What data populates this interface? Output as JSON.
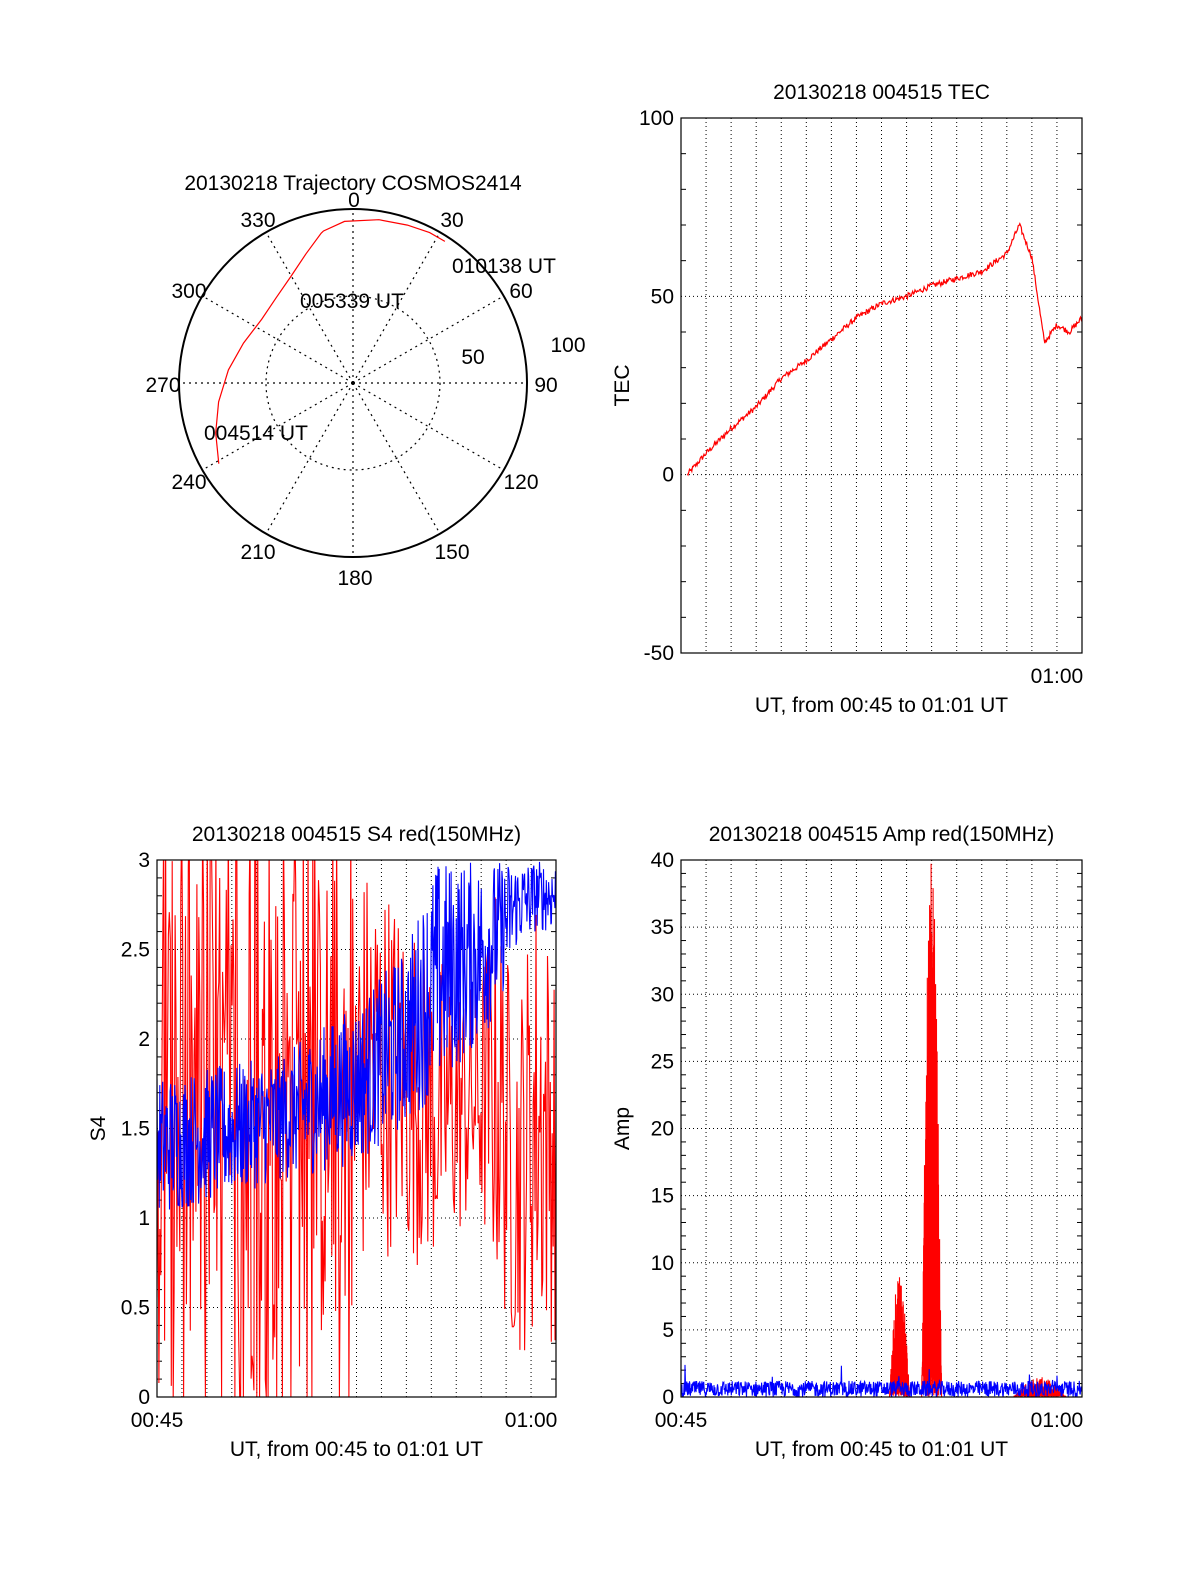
{
  "chart_data": [
    {
      "id": "trajectory",
      "type": "polar",
      "title": "20130218 Trajectory COSMOS2414",
      "azimuth_labels": [
        "0",
        "30",
        "60",
        "90",
        "120",
        "150",
        "180",
        "210",
        "240",
        "270",
        "300",
        "330"
      ],
      "radial_labels": [
        "50",
        "100"
      ],
      "rlim": [
        0,
        100
      ],
      "color": "#ff0000",
      "track": [
        {
          "az": 239,
          "r": 90
        },
        {
          "az": 250,
          "r": 84
        },
        {
          "az": 262,
          "r": 78
        },
        {
          "az": 276,
          "r": 72
        },
        {
          "az": 290,
          "r": 67
        },
        {
          "az": 305,
          "r": 64
        },
        {
          "az": 318,
          "r": 66
        },
        {
          "az": 330,
          "r": 71
        },
        {
          "az": 340,
          "r": 79
        },
        {
          "az": 348,
          "r": 88
        },
        {
          "az": 349,
          "r": 89
        },
        {
          "az": 357,
          "r": 93
        },
        {
          "az": 9,
          "r": 95
        },
        {
          "az": 19,
          "r": 96
        },
        {
          "az": 27,
          "r": 97
        },
        {
          "az": 33,
          "r": 97
        }
      ],
      "annotations": [
        {
          "text": "010138 UT",
          "az": 33,
          "r": 97
        },
        {
          "text": "005339 UT",
          "az": 350,
          "r": 56
        },
        {
          "text": "004514 UT",
          "az": 240,
          "r": 87
        }
      ]
    },
    {
      "id": "tec",
      "type": "line",
      "title": "20130218 004515 TEC",
      "xlabel": "UT, from 00:45 to 01:01 UT",
      "ylabel": "TEC",
      "xlim": [
        "00:45",
        "01:01"
      ],
      "ylim": [
        -50,
        100
      ],
      "yticks": [
        "100",
        "50",
        "0",
        "-50"
      ],
      "xticks": [
        "01:00"
      ],
      "grid": true,
      "series": [
        {
          "color": "#ff0000",
          "x": [
            "00:45:15",
            "00:46:00",
            "00:47:00",
            "00:48:00",
            "00:49:00",
            "00:50:00",
            "00:51:00",
            "00:52:00",
            "00:53:00",
            "00:54:00",
            "00:55:00",
            "00:56:00",
            "00:57:00",
            "00:58:00",
            "00:58:30",
            "00:59:00",
            "00:59:30",
            "01:00:00",
            "01:00:30",
            "01:01:00"
          ],
          "y": [
            0,
            6,
            13,
            19,
            27,
            32,
            38,
            44,
            48,
            50,
            53,
            55,
            57,
            62,
            70,
            61,
            37,
            42,
            40,
            44
          ]
        }
      ]
    },
    {
      "id": "s4",
      "type": "line",
      "title": "20130218 004515 S4 red(150MHz)",
      "xlabel": "UT, from 00:45 to 01:01 UT",
      "ylabel": "S4",
      "xlim": [
        "00:45",
        "01:01"
      ],
      "ylim": [
        0,
        3
      ],
      "yticks": [
        "3",
        "2.5",
        "2",
        "1.5",
        "1",
        "0.5",
        "0"
      ],
      "xticks": [
        "00:45",
        "01:00"
      ],
      "grid": true,
      "series": [
        {
          "color": "#ff0000",
          "noisy": true,
          "envelope_x": [
            0,
            0.3,
            0.45,
            0.55,
            0.7,
            0.8,
            0.85,
            0.9,
            0.95,
            1.0
          ],
          "envelope_lo": [
            0,
            0,
            0.3,
            0.8,
            0.7,
            1.0,
            0.6,
            0.2,
            0.3,
            0.3
          ],
          "envelope_hi": [
            3,
            3,
            3,
            3,
            2.5,
            2.3,
            2.9,
            2.2,
            2.9,
            2.5
          ]
        },
        {
          "color": "#0000ff",
          "noisy": true,
          "envelope_x": [
            0,
            0.3,
            0.5,
            0.62,
            0.7,
            0.82,
            0.86,
            0.9,
            0.95,
            1.0
          ],
          "envelope_lo": [
            1.0,
            1.2,
            1.3,
            1.5,
            1.7,
            2.0,
            2.2,
            2.5,
            2.6,
            2.6
          ],
          "envelope_hi": [
            1.8,
            1.9,
            2.2,
            2.5,
            3,
            3,
            3,
            3,
            3,
            3
          ]
        }
      ]
    },
    {
      "id": "amp",
      "type": "line",
      "title": "20130218 004515 Amp red(150MHz)",
      "xlabel": "UT, from 00:45 to 01:01 UT",
      "ylabel": "Amp",
      "xlim": [
        "00:45",
        "01:01"
      ],
      "ylim": [
        0,
        40
      ],
      "yticks": [
        "40",
        "35",
        "30",
        "25",
        "20",
        "15",
        "10",
        "5",
        "0"
      ],
      "xticks": [
        "00:45",
        "01:00"
      ],
      "grid": true,
      "series": [
        {
          "color": "#0000ff",
          "baseline": 0.6,
          "noise": 0.6
        },
        {
          "color": "#ff0000",
          "bursts": [
            {
              "t_start": 0.52,
              "t_end": 0.57,
              "peak": 9.5
            },
            {
              "t_start": 0.6,
              "t_end": 0.65,
              "peak": 40
            },
            {
              "t_start": 0.83,
              "t_end": 0.96,
              "peak": 1.5
            }
          ]
        }
      ]
    }
  ]
}
